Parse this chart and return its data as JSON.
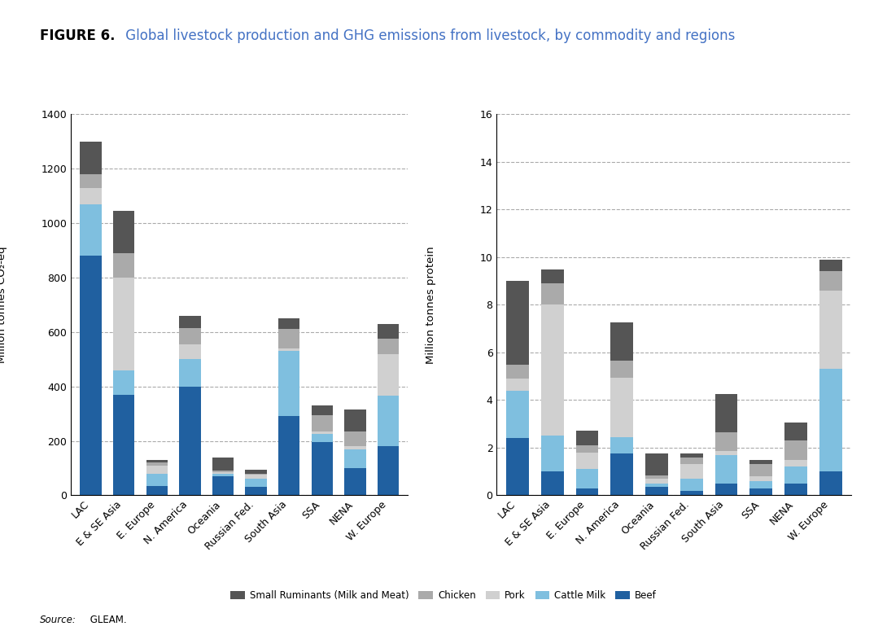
{
  "title_black": "FIGURE 6.",
  "title_blue": " Global livestock production and GHG emissions from livestock, by commodity and regions",
  "regions": [
    "LAC",
    "E & SE Asia",
    "E. Europe",
    "N. America",
    "Oceania",
    "Russian Fed.",
    "South Asia",
    "SSA",
    "NENA",
    "W. Europe"
  ],
  "left_ylabel": "Million tonnes CO₂-eq",
  "right_ylabel": "Million tonnes protein",
  "left_ylim": [
    0,
    1400
  ],
  "right_ylim": [
    0,
    16
  ],
  "left_yticks": [
    0,
    200,
    400,
    600,
    800,
    1000,
    1200,
    1400
  ],
  "right_yticks": [
    0,
    2,
    4,
    6,
    8,
    10,
    12,
    14,
    16
  ],
  "source_italic": "Source:",
  "source_normal": " GLEAM.",
  "colors": {
    "Small Ruminants (Milk and Meat)": "#555555",
    "Chicken": "#aaaaaa",
    "Pork": "#d0d0d0",
    "Cattle Milk": "#7fbfdf",
    "Beef": "#2060a0"
  },
  "left_data": {
    "Beef": [
      880,
      370,
      35,
      400,
      70,
      30,
      290,
      195,
      100,
      180
    ],
    "Cattle Milk": [
      190,
      90,
      45,
      100,
      10,
      30,
      240,
      30,
      70,
      185
    ],
    "Pork": [
      60,
      340,
      30,
      55,
      5,
      15,
      10,
      10,
      10,
      155
    ],
    "Chicken": [
      50,
      90,
      10,
      60,
      5,
      5,
      70,
      60,
      55,
      55
    ],
    "Small Ruminants (Milk and Meat)": [
      120,
      155,
      10,
      45,
      50,
      15,
      40,
      35,
      80,
      55
    ]
  },
  "right_data": {
    "Beef": [
      2.4,
      1.0,
      0.3,
      1.75,
      0.35,
      0.2,
      0.5,
      0.3,
      0.5,
      1.0
    ],
    "Cattle Milk": [
      2.0,
      1.5,
      0.8,
      0.7,
      0.15,
      0.5,
      1.2,
      0.3,
      0.7,
      4.3
    ],
    "Pork": [
      0.5,
      5.5,
      0.7,
      2.5,
      0.2,
      0.6,
      0.15,
      0.2,
      0.3,
      3.3
    ],
    "Chicken": [
      0.6,
      0.9,
      0.3,
      0.7,
      0.15,
      0.3,
      0.8,
      0.5,
      0.8,
      0.8
    ],
    "Small Ruminants (Milk and Meat)": [
      3.5,
      0.6,
      0.6,
      1.6,
      0.9,
      0.15,
      1.6,
      0.2,
      0.75,
      0.5
    ]
  },
  "legend_order": [
    "Small Ruminants (Milk and Meat)",
    "Chicken",
    "Pork",
    "Cattle Milk",
    "Beef"
  ]
}
